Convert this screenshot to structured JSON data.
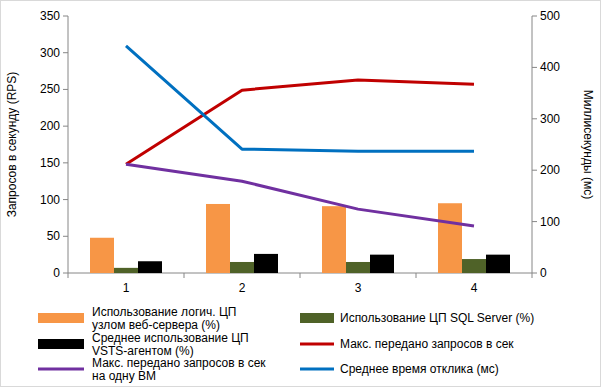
{
  "chart_data": {
    "type": "bar",
    "categories": [
      "1",
      "2",
      "3",
      "4"
    ],
    "y_label": "Запросов в секунду (RPS)",
    "y2_label": "Миллисекунды (мс)",
    "ylim": [
      0,
      350
    ],
    "yticks": [
      0,
      50,
      100,
      150,
      200,
      250,
      300,
      350
    ],
    "y2lim": [
      0,
      500
    ],
    "y2ticks": [
      0,
      100,
      200,
      300,
      400,
      500
    ],
    "grid": false,
    "legend": "bottom",
    "series": [
      {
        "name": "Использование логич. ЦП\nузлом веб-сервера (%)",
        "type": "bar",
        "color": "#f79646",
        "values": [
          48,
          94,
          91,
          95
        ]
      },
      {
        "name": "Использование ЦП SQL Server (%)",
        "type": "bar",
        "color": "#4f6228",
        "values": [
          7,
          15,
          15,
          19
        ]
      },
      {
        "name": "Среднее использование ЦП\nVSTS-агентом (%)",
        "type": "bar",
        "color": "#000000",
        "values": [
          16,
          26,
          25,
          25
        ]
      },
      {
        "name": "Макс. передано запросов в сек",
        "type": "line",
        "color": "#c00000",
        "values": [
          148,
          249,
          263,
          257
        ]
      },
      {
        "name": "Макс. передано запросов в сек\nна одну ВМ",
        "type": "line",
        "color": "#7030a0",
        "values": [
          148,
          125,
          87,
          64
        ]
      },
      {
        "name": "Среднее время отклика (мс)",
        "type": "line",
        "color": "#0070c0",
        "axis": "y2",
        "values": [
          442,
          241,
          237,
          237
        ]
      }
    ]
  }
}
